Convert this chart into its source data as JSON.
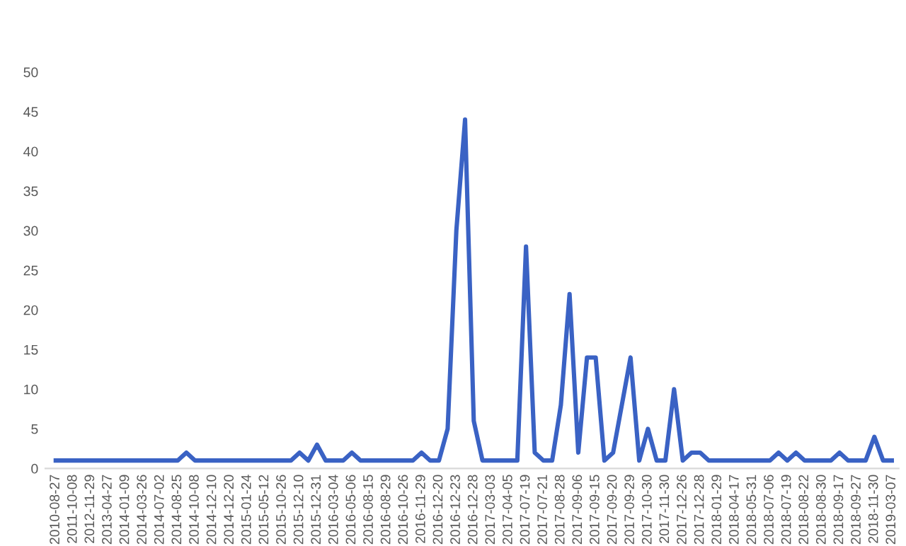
{
  "chart_data": {
    "type": "line",
    "categories": [
      "2010-08-27",
      null,
      "2011-10-08",
      null,
      "2012-11-29",
      null,
      "2013-04-27",
      null,
      "2014-01-09",
      null,
      "2014-03-26",
      null,
      "2014-07-02",
      null,
      "2014-08-25",
      null,
      "2014-10-08",
      null,
      "2014-12-10",
      null,
      "2014-12-20",
      null,
      "2015-01-24",
      null,
      "2015-05-12",
      null,
      "2015-10-26",
      null,
      "2015-12-10",
      null,
      "2015-12-31",
      null,
      "2016-03-04",
      null,
      "2016-05-06",
      null,
      "2016-08-15",
      null,
      "2016-08-29",
      null,
      "2016-10-26",
      null,
      "2016-11-29",
      null,
      "2016-12-20",
      null,
      "2016-12-23",
      null,
      "2016-12-28",
      null,
      "2017-03-03",
      null,
      "2017-04-05",
      null,
      "2017-07-19",
      null,
      "2017-07-21",
      null,
      "2017-08-28",
      null,
      "2017-09-06",
      null,
      "2017-09-15",
      null,
      "2017-09-20",
      null,
      "2017-09-29",
      null,
      "2017-10-30",
      null,
      "2017-11-30",
      null,
      "2017-12-26",
      null,
      "2017-12-28",
      null,
      "2018-01-29",
      null,
      "2018-04-17",
      null,
      "2018-05-31",
      null,
      "2018-07-06",
      null,
      "2018-07-19",
      null,
      "2018-08-22",
      null,
      "2018-08-30",
      null,
      "2018-09-17",
      null,
      "2018-09-27",
      null,
      "2018-11-30",
      null,
      "2019-03-07"
    ],
    "series": [
      {
        "color": "#3a62c4",
        "values": [
          1,
          1,
          1,
          1,
          1,
          1,
          1,
          1,
          1,
          1,
          1,
          1,
          1,
          1,
          1,
          2,
          1,
          1,
          1,
          1,
          1,
          1,
          1,
          1,
          1,
          1,
          1,
          1,
          2,
          1,
          3,
          1,
          1,
          1,
          2,
          1,
          1,
          1,
          1,
          1,
          1,
          1,
          2,
          1,
          1,
          5,
          30,
          44,
          6,
          1,
          1,
          1,
          1,
          1,
          28,
          2,
          1,
          1,
          8,
          22,
          2,
          14,
          14,
          1,
          2,
          8,
          14,
          1,
          5,
          1,
          1,
          10,
          1,
          2,
          2,
          1,
          1,
          1,
          1,
          1,
          1,
          1,
          1,
          2,
          1,
          2,
          1,
          1,
          1,
          1,
          2,
          1,
          1,
          1,
          4,
          1,
          1
        ]
      }
    ],
    "ylim": [
      0,
      50
    ],
    "yticks": [
      0,
      5,
      10,
      15,
      20,
      25,
      30,
      35,
      40,
      45,
      50
    ],
    "grid": false,
    "marker": "none",
    "line_style": "solid"
  }
}
